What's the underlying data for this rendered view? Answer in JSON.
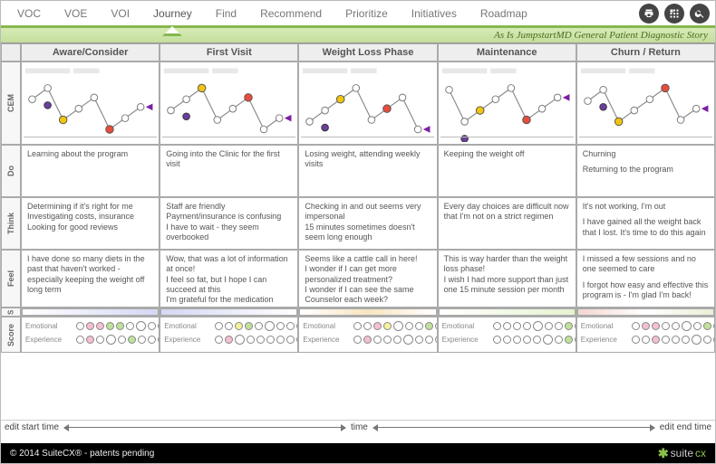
{
  "tabs": {
    "items": [
      "VOC",
      "VOE",
      "VOI",
      "Journey",
      "Find",
      "Recommend",
      "Prioritize",
      "Initiatives",
      "Roadmap"
    ],
    "active_index": 3
  },
  "title_band": "As Is JumpstartMD General Patient Diagnostic Story",
  "columns": [
    "Aware/Consider",
    "First Visit",
    "Weight Loss Phase",
    "Maintenance",
    "Churn / Return"
  ],
  "rows": {
    "cem": "CEM",
    "do": "Do",
    "think": "Think",
    "feel": "Feel",
    "s": "S",
    "score": "Score"
  },
  "do_cells": [
    "Learning about the program",
    "Going into the Clinic for the first visit",
    "Losing weight, attending weekly visits",
    "Keeping the weight off",
    ""
  ],
  "do_churn": {
    "p1": "Churning",
    "p2": "Returning to the program"
  },
  "think_cells": [
    "Determining if it's right for me\nInvestigating costs, insurance\nLooking for good reviews",
    "Staff are friendly\nPayment/insurance is confusing\nI have to wait - they seem overbooked",
    "Checking in and out seems very impersonal\n15 minutes sometimes doesn't seem long enough",
    "Every day choices are difficult now that I'm not on a strict regimen",
    ""
  ],
  "think_churn": {
    "p1": "It's not working, I'm out",
    "p2": "I have gained all the weight back that I lost. It's time to do this again"
  },
  "feel_cells": [
    "I have done so many diets in the past that haven't worked - especially keeping the weight off long term",
    "Wow, that was a lot of information at once!\nI feel so fat, but I hope I can succeed at this\nI'm grateful for the medication",
    "Seems like a cattle call in here!\nI wonder if I can get more personalized treatment?\nI wonder if I can see the same Counselor each week?",
    "This is way harder than the weight loss phase!\nI wish I had more support than just one 15 minute session per month",
    ""
  ],
  "feel_churn": {
    "p1": "I missed a few sessions and no one seemed to care",
    "p2": "I forgot how easy and effective this program is - I'm glad I'm back!"
  },
  "sense_gradients": [
    "linear-gradient(to right,#ffffff,#d5d7f3)",
    "linear-gradient(to right,#d5d7f3,#ffffff)",
    "linear-gradient(to right,#ffffff,#f8e4c0,#ffffff)",
    "linear-gradient(to right,#ffffff,#e6f3d0)",
    "linear-gradient(to right,#f3d6d0,#ffffff,#e8f0d4)"
  ],
  "score_labels": {
    "emo": "Emotional",
    "exp": "Experience"
  },
  "score_rows": [
    {
      "emo": [
        [
          "#fff",
          0
        ],
        [
          "#f5bfd1",
          0
        ],
        [
          "#f5bfd1",
          0
        ],
        [
          "#bfe29a",
          0
        ],
        [
          "#bfe29a",
          0
        ],
        [
          "#fff",
          0
        ],
        [
          "#fff",
          1
        ],
        [
          "#fff",
          0
        ],
        [
          "#fff",
          0
        ],
        [
          "#bfe29a",
          0
        ],
        [
          "#fff",
          0
        ]
      ],
      "exp": [
        [
          "#fff",
          0
        ],
        [
          "#f5bfd1",
          0
        ],
        [
          "#fff",
          0
        ],
        [
          "#fff",
          1
        ],
        [
          "#fff",
          0
        ],
        [
          "#bfe29a",
          0
        ],
        [
          "#fff",
          0
        ],
        [
          "#fff",
          0
        ],
        [
          "#fff",
          0
        ],
        [
          "#fff",
          0
        ],
        [
          "#fff",
          0
        ]
      ]
    },
    {
      "emo": [
        [
          "#fff",
          0
        ],
        [
          "#fff",
          0
        ],
        [
          "#f5f39a",
          0
        ],
        [
          "#bfe29a",
          0
        ],
        [
          "#fff",
          0
        ],
        [
          "#fff",
          1
        ],
        [
          "#fff",
          0
        ],
        [
          "#fff",
          0
        ],
        [
          "#bfe29a",
          0
        ],
        [
          "#fff",
          0
        ],
        [
          "#fff",
          0
        ]
      ],
      "exp": [
        [
          "#fff",
          0
        ],
        [
          "#f5bfd1",
          0
        ],
        [
          "#fff",
          1
        ],
        [
          "#fff",
          0
        ],
        [
          "#fff",
          0
        ],
        [
          "#fff",
          0
        ],
        [
          "#fff",
          0
        ],
        [
          "#fff",
          0
        ],
        [
          "#bfe29a",
          0
        ],
        [
          "#fff",
          0
        ],
        [
          "#fff",
          0
        ]
      ]
    },
    {
      "emo": [
        [
          "#fff",
          0
        ],
        [
          "#fff",
          0
        ],
        [
          "#f5bfd1",
          0
        ],
        [
          "#f5f39a",
          0
        ],
        [
          "#fff",
          1
        ],
        [
          "#fff",
          0
        ],
        [
          "#fff",
          0
        ],
        [
          "#bfe29a",
          0
        ],
        [
          "#fff",
          0
        ],
        [
          "#fff",
          0
        ],
        [
          "#fff",
          0
        ]
      ],
      "exp": [
        [
          "#fff",
          0
        ],
        [
          "#f5bfd1",
          0
        ],
        [
          "#fff",
          0
        ],
        [
          "#fff",
          0
        ],
        [
          "#fff",
          0
        ],
        [
          "#fff",
          1
        ],
        [
          "#fff",
          0
        ],
        [
          "#fff",
          0
        ],
        [
          "#fff",
          0
        ],
        [
          "#bfe29a",
          0
        ],
        [
          "#fff",
          0
        ]
      ]
    },
    {
      "emo": [
        [
          "#fff",
          0
        ],
        [
          "#fff",
          0
        ],
        [
          "#fff",
          0
        ],
        [
          "#fff",
          0
        ],
        [
          "#fff",
          1
        ],
        [
          "#fff",
          0
        ],
        [
          "#fff",
          0
        ],
        [
          "#bfe29a",
          0
        ],
        [
          "#bfe29a",
          1
        ],
        [
          "#fff",
          0
        ],
        [
          "#fff",
          0
        ]
      ],
      "exp": [
        [
          "#fff",
          0
        ],
        [
          "#fff",
          0
        ],
        [
          "#fff",
          0
        ],
        [
          "#fff",
          0
        ],
        [
          "#fff",
          0
        ],
        [
          "#fff",
          1
        ],
        [
          "#fff",
          0
        ],
        [
          "#bfe29a",
          0
        ],
        [
          "#fff",
          0
        ],
        [
          "#fff",
          0
        ],
        [
          "#fff",
          0
        ]
      ]
    },
    {
      "emo": [
        [
          "#fff",
          0
        ],
        [
          "#f5bfd1",
          0
        ],
        [
          "#f5bfd1",
          0
        ],
        [
          "#fff",
          0
        ],
        [
          "#fff",
          0
        ],
        [
          "#fff",
          1
        ],
        [
          "#fff",
          0
        ],
        [
          "#bfe29a",
          0
        ],
        [
          "#fff",
          0
        ],
        [
          "#fff",
          0
        ],
        [
          "#fff",
          0
        ]
      ],
      "exp": [
        [
          "#fff",
          0
        ],
        [
          "#fff",
          0
        ],
        [
          "#f5bfd1",
          0
        ],
        [
          "#fff",
          0
        ],
        [
          "#fff",
          0
        ],
        [
          "#fff",
          0
        ],
        [
          "#fff",
          1
        ],
        [
          "#fff",
          0
        ],
        [
          "#bfe29a",
          0
        ],
        [
          "#fff",
          0
        ],
        [
          "#fff",
          0
        ]
      ]
    }
  ],
  "timebar": {
    "left": "edit start time",
    "mid": "time",
    "right": "edit end time"
  },
  "footer": {
    "left": "© 2014 SuiteCX® - patents pending",
    "brand1": "suite",
    "brand2": "cx"
  }
}
